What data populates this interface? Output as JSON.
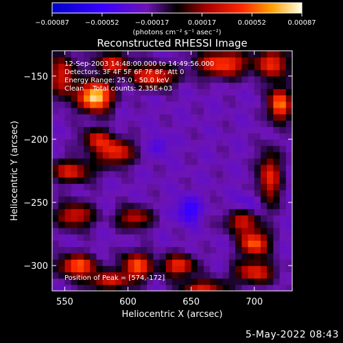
{
  "chart_data": {
    "type": "heatmap",
    "title": "Reconstructed RHESSI Image",
    "xlabel": "Heliocentric X (arcsec)",
    "ylabel": "Heliocentric Y (arcsec)",
    "xlim": [
      540,
      730
    ],
    "ylim": [
      -320,
      -130
    ],
    "x_ticks": [
      550,
      600,
      650,
      700
    ],
    "y_ticks": [
      -150,
      -200,
      -250,
      -300
    ],
    "colorbar": {
      "range": [
        -0.00087,
        0.00087
      ],
      "tick_labels": [
        "-0.00087",
        "-0.00052",
        "-0.00017",
        "0.00017",
        "0.00052",
        "0.00087"
      ],
      "unit_label": "(photons cm⁻² s⁻¹ asec⁻²)"
    },
    "annotations": [
      "12-Sep-2003 14:48:00.000 to 14:49:56.000",
      "Detectors: 3F 4F 5F 6F 7F 8F, Att 0",
      "Energy Range: 25.0 - 50.0 keV",
      "Clean    Total counts: 2.35E+03"
    ],
    "peak_label": "Position of Peak = [574,-172]",
    "peak_position": [
      574,
      -172
    ],
    "hot_spots": [
      {
        "x": 574,
        "y": -166,
        "value": 0.00087,
        "sx": 9,
        "sy": 8
      },
      {
        "x": 548,
        "y": -150,
        "value": 0.00035,
        "sx": 7,
        "sy": 12
      },
      {
        "x": 620,
        "y": -150,
        "value": 0.00045,
        "sx": 12,
        "sy": 6
      },
      {
        "x": 588,
        "y": -140,
        "value": 0.00032,
        "sx": 10,
        "sy": 6
      },
      {
        "x": 590,
        "y": -210,
        "value": 0.00042,
        "sx": 10,
        "sy": 7
      },
      {
        "x": 555,
        "y": -225,
        "value": 0.00035,
        "sx": 12,
        "sy": 6
      },
      {
        "x": 575,
        "y": -200,
        "value": 0.00028,
        "sx": 8,
        "sy": 6
      },
      {
        "x": 558,
        "y": -260,
        "value": 0.00035,
        "sx": 10,
        "sy": 7
      },
      {
        "x": 605,
        "y": -262,
        "value": 0.0003,
        "sx": 9,
        "sy": 6
      },
      {
        "x": 560,
        "y": -300,
        "value": 0.00055,
        "sx": 10,
        "sy": 6
      },
      {
        "x": 607,
        "y": -300,
        "value": 0.00052,
        "sx": 8,
        "sy": 7
      },
      {
        "x": 585,
        "y": -312,
        "value": 0.0003,
        "sx": 12,
        "sy": 5
      },
      {
        "x": 675,
        "y": -140,
        "value": 0.0005,
        "sx": 14,
        "sy": 7
      },
      {
        "x": 715,
        "y": -140,
        "value": 0.0004,
        "sx": 9,
        "sy": 8
      },
      {
        "x": 720,
        "y": -172,
        "value": 0.00062,
        "sx": 6,
        "sy": 9
      },
      {
        "x": 712,
        "y": -230,
        "value": 0.0004,
        "sx": 6,
        "sy": 14
      },
      {
        "x": 690,
        "y": -265,
        "value": 0.0003,
        "sx": 9,
        "sy": 6
      },
      {
        "x": 700,
        "y": -282,
        "value": 0.00055,
        "sx": 8,
        "sy": 7
      },
      {
        "x": 640,
        "y": -300,
        "value": 0.00042,
        "sx": 9,
        "sy": 6
      },
      {
        "x": 700,
        "y": -305,
        "value": 0.00038,
        "sx": 11,
        "sy": 6
      },
      {
        "x": 660,
        "y": -318,
        "value": 0.00035,
        "sx": 12,
        "sy": 5
      }
    ],
    "cool_spots": [
      {
        "x": 648,
        "y": -256,
        "value": -0.0006,
        "sx": 6,
        "sy": 7
      },
      {
        "x": 625,
        "y": -205,
        "value": -0.00045,
        "sx": 5,
        "sy": 5
      },
      {
        "x": 695,
        "y": -250,
        "value": -0.00035,
        "sx": 7,
        "sy": 6
      }
    ],
    "background_value": -0.00022
  },
  "footer": {
    "date": "5-May-2022 08:43"
  }
}
